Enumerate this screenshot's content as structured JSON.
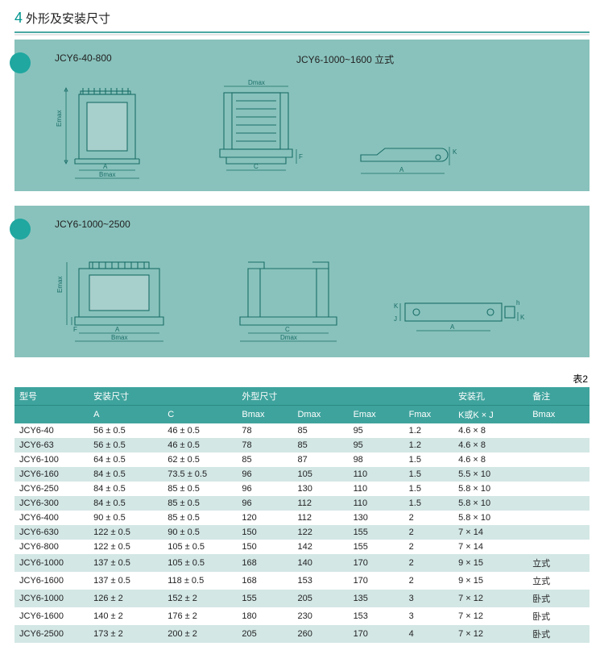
{
  "colors": {
    "panel_bg": "#89c2bc",
    "dot_bg": "#1fa7a0",
    "header_bg": "#3fa39d",
    "row_alt": "#d3e7e5",
    "line": "#1a6d68"
  },
  "section": {
    "num": "4",
    "title": "外形及安装尺寸"
  },
  "panel1": {
    "label_left": "JCY6-40-800",
    "label_right": "JCY6-1000~1600 立式",
    "dims": {
      "A": "A",
      "Bmax": "Bmax",
      "Emax": "Emax",
      "C": "C",
      "Dmax": "Dmax",
      "F": "F",
      "K": "K"
    }
  },
  "panel2": {
    "label": "JCY6-1000~2500",
    "dims": {
      "A": "A",
      "Bmax": "Bmax",
      "Emax": "Emax",
      "F": "F",
      "C": "C",
      "Dmax": "Dmax",
      "K": "K",
      "J": "J",
      "h": "h"
    }
  },
  "table": {
    "caption": "表2",
    "group_headers": [
      "型号",
      "安装尺寸",
      "外型尺寸",
      "安装孔",
      "备注"
    ],
    "sub_headers": [
      "",
      "A",
      "C",
      "Bmax",
      "Dmax",
      "Emax",
      "Fmax",
      "K或K × J",
      "Bmax"
    ],
    "col_widths_pct": [
      12,
      12,
      12,
      9,
      9,
      9,
      8,
      12,
      10
    ],
    "rows": [
      [
        "JCY6-40",
        "56 ± 0.5",
        "46 ± 0.5",
        "78",
        "85",
        "95",
        "1.2",
        "4.6 × 8",
        ""
      ],
      [
        "JCY6-63",
        "56 ± 0.5",
        "46 ± 0.5",
        "78",
        "85",
        "95",
        "1.2",
        "4.6 × 8",
        ""
      ],
      [
        "JCY6-100",
        "64 ± 0.5",
        "62 ± 0.5",
        "85",
        "87",
        "98",
        "1.5",
        "4.6 × 8",
        ""
      ],
      [
        "JCY6-160",
        "84 ± 0.5",
        "73.5 ± 0.5",
        "96",
        "105",
        "110",
        "1.5",
        "5.5 × 10",
        ""
      ],
      [
        "JCY6-250",
        "84 ± 0.5",
        "85 ± 0.5",
        "96",
        "130",
        "110",
        "1.5",
        "5.8 × 10",
        ""
      ],
      [
        "JCY6-300",
        "84 ± 0.5",
        "85 ± 0.5",
        "96",
        "112",
        "110",
        "1.5",
        "5.8 × 10",
        ""
      ],
      [
        "JCY6-400",
        "90 ± 0.5",
        "85 ± 0.5",
        "120",
        "112",
        "130",
        "2",
        "5.8 × 10",
        ""
      ],
      [
        "JCY6-630",
        "122 ± 0.5",
        "90 ± 0.5",
        "150",
        "122",
        "155",
        "2",
        "7 × 14",
        ""
      ],
      [
        "JCY6-800",
        "122 ± 0.5",
        "105 ± 0.5",
        "150",
        "142",
        "155",
        "2",
        "7 × 14",
        ""
      ],
      [
        "JCY6-1000",
        "137 ± 0.5",
        "105 ± 0.5",
        "168",
        "140",
        "170",
        "2",
        "9 × 15",
        "立式"
      ],
      [
        "JCY6-1600",
        "137 ± 0.5",
        "118 ± 0.5",
        "168",
        "153",
        "170",
        "2",
        "9 × 15",
        "立式"
      ],
      [
        "JCY6-1000",
        "126 ± 2",
        "152 ± 2",
        "155",
        "205",
        "135",
        "3",
        "7 × 12",
        "卧式"
      ],
      [
        "JCY6-1600",
        "140 ± 2",
        "176 ± 2",
        "180",
        "230",
        "153",
        "3",
        "7 × 12",
        "卧式"
      ],
      [
        "JCY6-2500",
        "173 ± 2",
        "200 ± 2",
        "205",
        "260",
        "170",
        "4",
        "7 × 12",
        "卧式"
      ]
    ]
  }
}
